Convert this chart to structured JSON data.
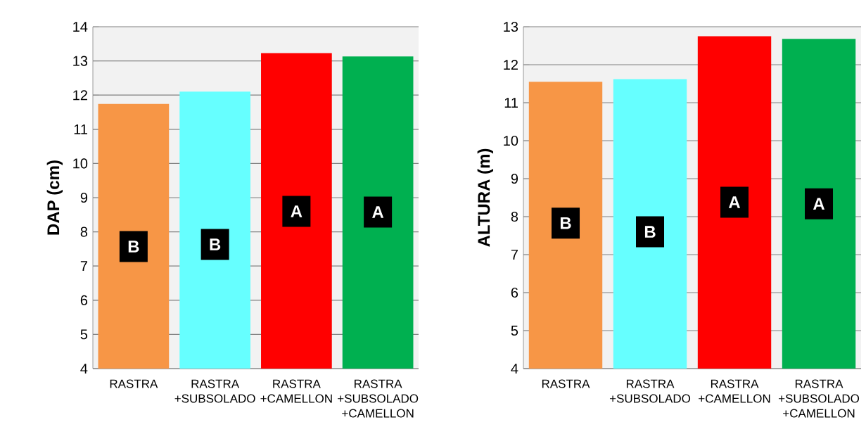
{
  "chart_data": [
    {
      "type": "bar",
      "ylabel": "DAP (cm)",
      "categories": [
        "RASTRA",
        "RASTRA +SUBSOLADO",
        "RASTRA +CAMELLON",
        "RASTRA +SUBSOLADO +CAMELLON"
      ],
      "values": [
        11.74,
        12.1,
        13.23,
        13.13
      ],
      "colors": [
        "#f79646",
        "#66ffff",
        "#ff0000",
        "#00b050"
      ],
      "ylim": [
        4,
        14
      ],
      "yticks": [
        4,
        5,
        6,
        7,
        8,
        9,
        10,
        11,
        12,
        13,
        14
      ],
      "grid": "y",
      "annotations": [
        {
          "text": "B",
          "x": "RASTRA",
          "y": 7.57
        },
        {
          "text": "B",
          "x": "RASTRA +SUBSOLADO",
          "y": 7.63
        },
        {
          "text": "A",
          "x": "RASTRA +CAMELLON",
          "y": 8.6
        },
        {
          "text": "A",
          "x": "RASTRA +SUBSOLADO +CAMELLON",
          "y": 8.58
        }
      ]
    },
    {
      "type": "bar",
      "ylabel": "ALTURA (m)",
      "categories": [
        "RASTRA",
        "RASTRA +SUBSOLADO",
        "RASTRA +CAMELLON",
        "RASTRA +SUBSOLADO +CAMELLON"
      ],
      "values": [
        11.55,
        11.62,
        12.75,
        12.68
      ],
      "colors": [
        "#f79646",
        "#66ffff",
        "#ff0000",
        "#00b050"
      ],
      "ylim": [
        4,
        13
      ],
      "yticks": [
        4,
        5,
        6,
        7,
        8,
        9,
        10,
        11,
        12,
        13
      ],
      "grid": "y",
      "annotations": [
        {
          "text": "B",
          "x": "RASTRA",
          "y": 7.83
        },
        {
          "text": "B",
          "x": "RASTRA +SUBSOLADO",
          "y": 7.6
        },
        {
          "text": "A",
          "x": "RASTRA +CAMELLON",
          "y": 8.38
        },
        {
          "text": "A",
          "x": "RASTRA +SUBSOLADO +CAMELLON",
          "y": 8.34
        }
      ]
    }
  ]
}
